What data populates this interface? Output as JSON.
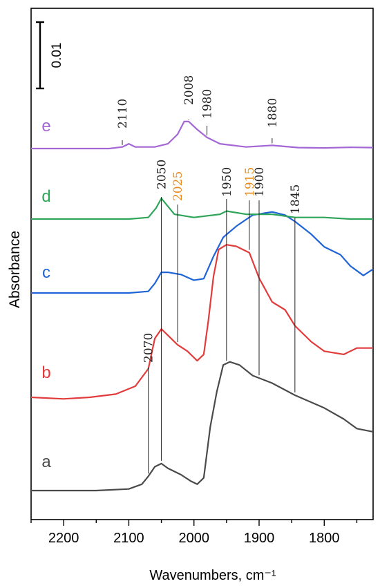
{
  "chart_data": {
    "type": "line",
    "xlabel": "Wavenumbers, cm⁻¹",
    "ylabel": "Absorbance",
    "xlim": [
      2250,
      1725
    ],
    "x_reversed": true,
    "x_ticks": [
      2200,
      2100,
      2000,
      1900,
      1800
    ],
    "y_ticks_shown": false,
    "scale_bar_label": "0.01",
    "colors": {
      "a": "#4a4a4a",
      "b": "#e23b3b",
      "c": "#1f63d6",
      "d": "#2fa55a",
      "e": "#a366d4",
      "annotation_orange": "#e88a1a",
      "annotation_black": "#222222"
    },
    "series": [
      {
        "name": "a",
        "points": [
          [
            2250,
            0.0
          ],
          [
            2200,
            0.0
          ],
          [
            2150,
            0.0
          ],
          [
            2100,
            0.0005
          ],
          [
            2080,
            0.002
          ],
          [
            2070,
            0.0045
          ],
          [
            2060,
            0.0075
          ],
          [
            2050,
            0.0085
          ],
          [
            2040,
            0.007
          ],
          [
            2020,
            0.005
          ],
          [
            2005,
            0.003
          ],
          [
            1995,
            0.002
          ],
          [
            1985,
            0.004
          ],
          [
            1975,
            0.02
          ],
          [
            1965,
            0.031
          ],
          [
            1955,
            0.0395
          ],
          [
            1945,
            0.0405
          ],
          [
            1930,
            0.0395
          ],
          [
            1910,
            0.0362
          ],
          [
            1880,
            0.0338
          ],
          [
            1845,
            0.03
          ],
          [
            1800,
            0.026
          ],
          [
            1770,
            0.0225
          ],
          [
            1750,
            0.0195
          ],
          [
            1725,
            0.0185
          ]
        ]
      },
      {
        "name": "b",
        "points": [
          [
            2250,
            0.0
          ],
          [
            2200,
            -0.0005
          ],
          [
            2160,
            0.0
          ],
          [
            2120,
            0.001
          ],
          [
            2090,
            0.0035
          ],
          [
            2070,
            0.009
          ],
          [
            2060,
            0.0185
          ],
          [
            2050,
            0.0215
          ],
          [
            2040,
            0.0195
          ],
          [
            2025,
            0.0165
          ],
          [
            2010,
            0.0145
          ],
          [
            1995,
            0.0115
          ],
          [
            1985,
            0.0135
          ],
          [
            1978,
            0.024
          ],
          [
            1970,
            0.038
          ],
          [
            1962,
            0.0465
          ],
          [
            1950,
            0.048
          ],
          [
            1935,
            0.0475
          ],
          [
            1915,
            0.0455
          ],
          [
            1900,
            0.0375
          ],
          [
            1880,
            0.03
          ],
          [
            1860,
            0.0275
          ],
          [
            1845,
            0.0225
          ],
          [
            1820,
            0.0175
          ],
          [
            1800,
            0.0145
          ],
          [
            1770,
            0.0135
          ],
          [
            1750,
            0.0155
          ],
          [
            1725,
            0.0155
          ]
        ]
      },
      {
        "name": "c",
        "points": [
          [
            2250,
            0.0
          ],
          [
            2200,
            0.0
          ],
          [
            2150,
            0.0
          ],
          [
            2100,
            0.0
          ],
          [
            2070,
            0.0005
          ],
          [
            2060,
            0.003
          ],
          [
            2050,
            0.0065
          ],
          [
            2040,
            0.0065
          ],
          [
            2020,
            0.0058
          ],
          [
            2000,
            0.004
          ],
          [
            1985,
            0.0045
          ],
          [
            1970,
            0.0115
          ],
          [
            1955,
            0.0175
          ],
          [
            1935,
            0.021
          ],
          [
            1910,
            0.0245
          ],
          [
            1880,
            0.0255
          ],
          [
            1860,
            0.0245
          ],
          [
            1845,
            0.0225
          ],
          [
            1820,
            0.0185
          ],
          [
            1800,
            0.0145
          ],
          [
            1775,
            0.012
          ],
          [
            1760,
            0.0085
          ],
          [
            1740,
            0.0055
          ],
          [
            1725,
            0.0075
          ]
        ]
      },
      {
        "name": "d",
        "points": [
          [
            2250,
            0.0
          ],
          [
            2200,
            0.0
          ],
          [
            2150,
            0.0
          ],
          [
            2100,
            0.0
          ],
          [
            2070,
            0.0005
          ],
          [
            2058,
            0.0035
          ],
          [
            2050,
            0.0065
          ],
          [
            2042,
            0.0045
          ],
          [
            2030,
            0.0015
          ],
          [
            2000,
            0.0005
          ],
          [
            1960,
            0.0015
          ],
          [
            1950,
            0.0025
          ],
          [
            1920,
            0.0015
          ],
          [
            1880,
            0.0015
          ],
          [
            1845,
            0.0005
          ],
          [
            1800,
            0.0005
          ],
          [
            1760,
            0.0
          ],
          [
            1725,
            0.0
          ]
        ]
      },
      {
        "name": "e",
        "points": [
          [
            2250,
            0.0
          ],
          [
            2200,
            0.0
          ],
          [
            2130,
            0.0
          ],
          [
            2110,
            0.0005
          ],
          [
            2100,
            0.0015
          ],
          [
            2090,
            0.0005
          ],
          [
            2060,
            0.0005
          ],
          [
            2040,
            0.0015
          ],
          [
            2025,
            0.0045
          ],
          [
            2015,
            0.0085
          ],
          [
            2008,
            0.0085
          ],
          [
            1995,
            0.006
          ],
          [
            1980,
            0.0035
          ],
          [
            1960,
            0.0015
          ],
          [
            1920,
            0.0005
          ],
          [
            1880,
            0.001
          ],
          [
            1840,
            0.0003
          ],
          [
            1800,
            0.0002
          ],
          [
            1760,
            0.0004
          ],
          [
            1725,
            0.0003
          ]
        ]
      }
    ],
    "annotations": [
      {
        "label": "2110",
        "x": 2110,
        "series": "e",
        "color": "black"
      },
      {
        "label": "2008",
        "x": 2008,
        "series": "e",
        "color": "black"
      },
      {
        "label": "1980",
        "x": 1980,
        "series": "e",
        "color": "black"
      },
      {
        "label": "1880",
        "x": 1880,
        "series": "e",
        "color": "black"
      },
      {
        "label": "2070",
        "x": 2070,
        "series": "a",
        "color": "black"
      },
      {
        "label": "2050",
        "x": 2050,
        "series": "a",
        "color": "black"
      },
      {
        "label": "2025",
        "x": 2025,
        "series": "b",
        "color": "orange"
      },
      {
        "label": "1950",
        "x": 1950,
        "series": "a",
        "color": "black"
      },
      {
        "label": "1915",
        "x": 1915,
        "series": "b",
        "color": "orange"
      },
      {
        "label": "1900",
        "x": 1900,
        "series": "a",
        "color": "black"
      },
      {
        "label": "1845",
        "x": 1845,
        "series": "a",
        "color": "black"
      }
    ]
  }
}
